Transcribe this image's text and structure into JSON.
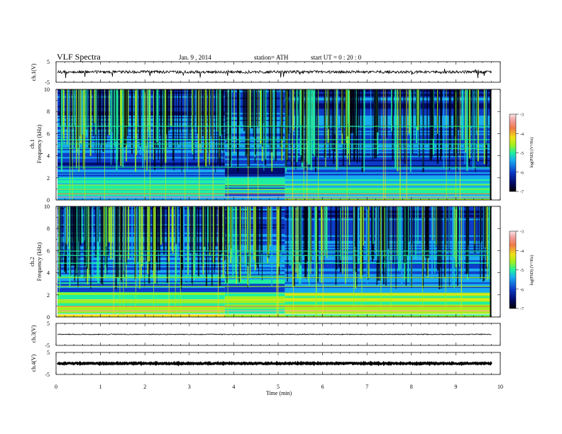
{
  "header": {
    "title": "VLF  Spectra",
    "date": "Jan. 9  , 2014",
    "station": "station= ATH",
    "start": "start  UT =   0 : 20 : 0"
  },
  "chart_data": [
    {
      "type": "line",
      "panel": "ch1-waveform",
      "ylabel": "ch.1(V)",
      "ylim": [
        -5,
        5
      ],
      "yticks": [
        "5",
        "-5"
      ],
      "baseline": 0
    },
    {
      "type": "heatmap",
      "panel": "ch1-spectrogram",
      "ylabel": "Frequency  (kHz)",
      "ylabel_channel": "ch.1",
      "ylim": [
        0,
        10
      ],
      "yticks": [
        "0",
        "2",
        "4",
        "6",
        "8",
        "10"
      ],
      "colorbar": {
        "label": "log(PSD) (V²/Hz)",
        "ticks": [
          "-3",
          "-4",
          "-5",
          "-6",
          "-7"
        ],
        "range": [
          -7,
          -3
        ]
      },
      "transitions_min": [
        3.8,
        5.15
      ]
    },
    {
      "type": "heatmap",
      "panel": "ch2-spectrogram",
      "ylabel": "Frequency  (kHz)",
      "ylabel_channel": "ch.2",
      "ylim": [
        0,
        10
      ],
      "yticks": [
        "0",
        "2",
        "4",
        "6",
        "8",
        "10"
      ],
      "colorbar": {
        "label": "log(PSD) (V²/Hz)",
        "ticks": [
          "-3",
          "-4",
          "-5",
          "-6",
          "-7"
        ],
        "range": [
          -7,
          -3
        ]
      },
      "transitions_min": [
        3.8,
        5.15
      ]
    },
    {
      "type": "line",
      "panel": "ch3-waveform",
      "ylabel": "ch.3(V)",
      "ylim": [
        -5,
        5
      ],
      "yticks": [
        "5",
        "-5"
      ],
      "baseline": 0
    },
    {
      "type": "line",
      "panel": "ch4-waveform",
      "ylabel": "ch.4(V)",
      "ylim": [
        -5,
        5
      ],
      "yticks": [
        "5",
        "-5"
      ],
      "baseline": 0
    }
  ],
  "xaxis": {
    "label": "Time  (min)",
    "range": [
      0,
      10
    ],
    "data_end": 9.8,
    "ticks": [
      "0",
      "1",
      "2",
      "3",
      "4",
      "5",
      "6",
      "7",
      "8",
      "9",
      "10"
    ]
  },
  "colors": {
    "colormap": [
      "#000008",
      "#000c6e",
      "#0c3cc8",
      "#18aaf0",
      "#1ef0a0",
      "#a0f01e",
      "#f0e018",
      "#f07848",
      "#f0a0a0",
      "#fce6e6"
    ]
  }
}
